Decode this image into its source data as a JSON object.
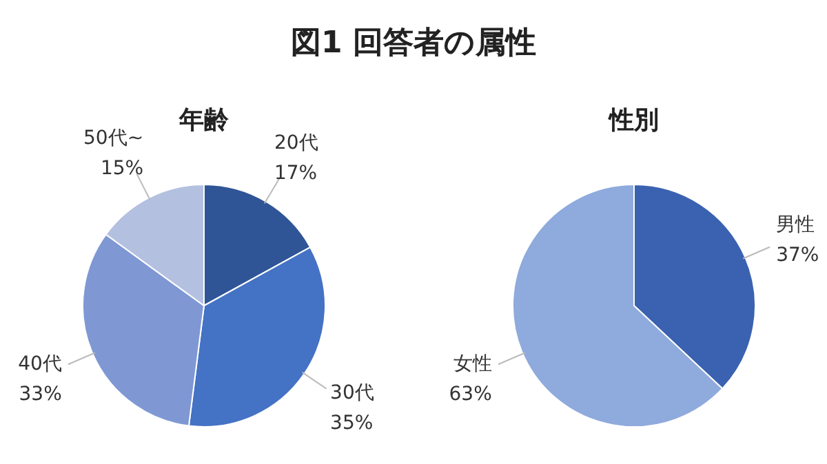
{
  "chart_data": [
    {
      "type": "other",
      "title": "図1 回答者の属性"
    },
    {
      "type": "pie",
      "title": "年齢",
      "categories": [
        "20代",
        "30代",
        "40代",
        "50代~"
      ],
      "values": [
        17,
        35,
        33,
        15
      ],
      "colors": [
        "#2f5597",
        "#4472c4",
        "#7f98d4",
        "#b4c0e0"
      ],
      "value_labels": [
        "17%",
        "35%",
        "33%",
        "15%"
      ],
      "legend": false
    },
    {
      "type": "pie",
      "title": "性別",
      "categories": [
        "男性",
        "女性"
      ],
      "values": [
        37,
        63
      ],
      "colors": [
        "#3a62b0",
        "#8faadc"
      ],
      "value_labels": [
        "37%",
        "63%"
      ],
      "legend": false
    }
  ]
}
